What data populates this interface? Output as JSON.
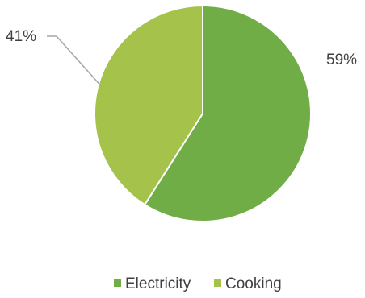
{
  "chart_data": {
    "type": "pie",
    "categories": [
      "Electricity",
      "Cooking"
    ],
    "values": [
      59,
      41
    ],
    "data_labels": [
      "59%",
      "41%"
    ],
    "colors": [
      "#70ad47",
      "#a5c34b"
    ],
    "title": "",
    "legend_position": "bottom"
  }
}
